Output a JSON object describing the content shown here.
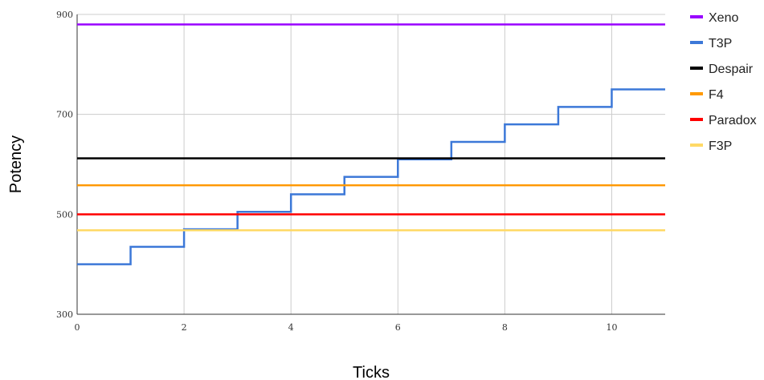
{
  "chart_data": {
    "type": "line",
    "xlabel": "Ticks",
    "ylabel": "Potency",
    "xlim": [
      0,
      11
    ],
    "ylim": [
      300,
      900
    ],
    "x_ticks": [
      0,
      2,
      4,
      6,
      8,
      10
    ],
    "y_ticks": [
      300,
      500,
      700,
      900
    ],
    "grid": true,
    "legend_position": "right",
    "series": [
      {
        "name": "Xeno",
        "color": "#9900ff",
        "step": false,
        "x": [
          0,
          11
        ],
        "values": [
          880,
          880
        ]
      },
      {
        "name": "T3P",
        "color": "#3c78d8",
        "step": true,
        "x": [
          0,
          1,
          2,
          3,
          4,
          5,
          6,
          7,
          8,
          9,
          10,
          11
        ],
        "values": [
          400,
          435,
          470,
          505,
          540,
          575,
          610,
          645,
          680,
          715,
          750,
          750
        ]
      },
      {
        "name": "Despair",
        "color": "#000000",
        "step": false,
        "x": [
          0,
          11
        ],
        "values": [
          612,
          612
        ]
      },
      {
        "name": "F4",
        "color": "#ff9900",
        "step": false,
        "x": [
          0,
          11
        ],
        "values": [
          558,
          558
        ]
      },
      {
        "name": "Paradox",
        "color": "#ff0000",
        "step": false,
        "x": [
          0,
          11
        ],
        "values": [
          500,
          500
        ]
      },
      {
        "name": "F3P",
        "color": "#ffd966",
        "step": false,
        "x": [
          0,
          11
        ],
        "values": [
          468,
          468
        ]
      }
    ]
  }
}
